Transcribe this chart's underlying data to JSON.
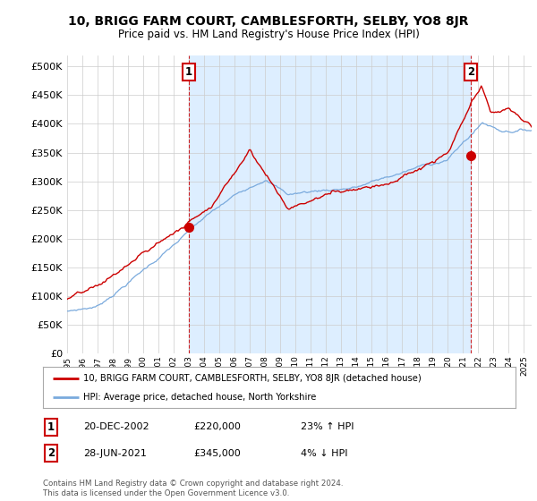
{
  "title": "10, BRIGG FARM COURT, CAMBLESFORTH, SELBY, YO8 8JR",
  "subtitle": "Price paid vs. HM Land Registry's House Price Index (HPI)",
  "legend_line1": "10, BRIGG FARM COURT, CAMBLESFORTH, SELBY, YO8 8JR (detached house)",
  "legend_line2": "HPI: Average price, detached house, North Yorkshire",
  "marker1_date": "20-DEC-2002",
  "marker1_price": "£220,000",
  "marker1_hpi": "23% ↑ HPI",
  "marker2_date": "28-JUN-2021",
  "marker2_price": "£345,000",
  "marker2_hpi": "4% ↓ HPI",
  "footer": "Contains HM Land Registry data © Crown copyright and database right 2024.\nThis data is licensed under the Open Government Licence v3.0.",
  "red_color": "#cc0000",
  "blue_color": "#7aaadd",
  "shade_color": "#ddeeff",
  "marker_box_color": "#cc0000",
  "grid_color": "#cccccc",
  "background_color": "#ffffff",
  "ylim": [
    0,
    520000
  ],
  "yticks": [
    0,
    50000,
    100000,
    150000,
    200000,
    250000,
    300000,
    350000,
    400000,
    450000,
    500000
  ],
  "sale1_year": 2002.97,
  "sale1_price": 220000,
  "sale2_year": 2021.49,
  "sale2_price": 345000
}
